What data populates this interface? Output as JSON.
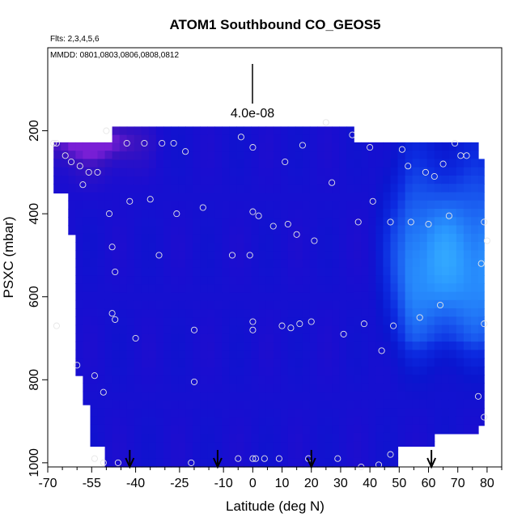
{
  "chart_data": {
    "type": "heatmap",
    "title": "ATOM1 Southbound CO_GEOS5",
    "flights_note": "Flts: 2,3,4,5,6",
    "dates_note": "MMDD: 0801,0803,0806,0808,0812",
    "xlabel": "Latitude (deg N)",
    "ylabel": "PSXC (mbar)",
    "xlim": [
      -70,
      85
    ],
    "ylim": [
      1010,
      0
    ],
    "x_ticks": [
      -70,
      -55,
      -40,
      -25,
      -10,
      0,
      10,
      20,
      30,
      40,
      50,
      60,
      70,
      80
    ],
    "x_tick_labels": [
      "-70",
      "-55",
      "-40",
      "-25",
      "-10",
      "0",
      "10",
      "20",
      "30",
      "40",
      "50",
      "60",
      "70",
      "80"
    ],
    "x_minor_ticks": [
      -65,
      -60,
      -50,
      -45,
      -35,
      -30,
      -20,
      -15,
      -5,
      5,
      15,
      25,
      35,
      45,
      55,
      65,
      75,
      85
    ],
    "y_ticks": [
      200,
      400,
      600,
      800,
      1000
    ],
    "y_tick_labels": [
      "200",
      "400",
      "600",
      "800",
      "1000"
    ],
    "scale_bar_label": "4.0e-08",
    "colormap": [
      "#7a1fd6",
      "#3a12c0",
      "#1a0ed0",
      "#0a16cf",
      "#0c2be0",
      "#1a5cf0",
      "#2a96ff",
      "#3ec0ff"
    ],
    "grid": false,
    "regions": {
      "top_left_purple": [
        [
          -68,
          230,
          0.05
        ],
        [
          -45,
          230,
          0.02
        ],
        [
          -38,
          230,
          0.0
        ]
      ],
      "nh_high": [
        [
          48,
          250,
          0.65
        ],
        [
          55,
          380,
          0.8
        ],
        [
          60,
          470,
          0.85
        ],
        [
          57,
          620,
          0.9
        ],
        [
          70,
          520,
          0.8
        ],
        [
          65,
          330,
          0.7
        ]
      ]
    },
    "observation_points": [
      [
        -68,
        230
      ],
      [
        -67,
        230
      ],
      [
        -67,
        670
      ],
      [
        -64,
        260
      ],
      [
        -62,
        275
      ],
      [
        -60,
        765
      ],
      [
        -59,
        285
      ],
      [
        -58,
        330
      ],
      [
        -56,
        300
      ],
      [
        -54,
        790
      ],
      [
        -54,
        990
      ],
      [
        -53,
        300
      ],
      [
        -51,
        830
      ],
      [
        -51,
        1000
      ],
      [
        -50,
        200
      ],
      [
        -49,
        400
      ],
      [
        -48,
        640
      ],
      [
        -48,
        480
      ],
      [
        -47,
        540
      ],
      [
        -47,
        655
      ],
      [
        -46,
        1000
      ],
      [
        -43,
        230
      ],
      [
        -42,
        370
      ],
      [
        -40,
        700
      ],
      [
        -37,
        230
      ],
      [
        -35,
        365
      ],
      [
        -32,
        500
      ],
      [
        -31,
        230
      ],
      [
        -27,
        230
      ],
      [
        -26,
        400
      ],
      [
        -23,
        250
      ],
      [
        -21,
        1000
      ],
      [
        -20,
        805
      ],
      [
        -20,
        680
      ],
      [
        -17,
        385
      ],
      [
        -7,
        500
      ],
      [
        -5,
        990
      ],
      [
        -4,
        215
      ],
      [
        -1,
        500
      ],
      [
        0,
        240
      ],
      [
        0,
        660
      ],
      [
        0,
        680
      ],
      [
        0,
        395
      ],
      [
        0,
        990
      ],
      [
        1,
        990
      ],
      [
        2,
        405
      ],
      [
        4,
        990
      ],
      [
        7,
        430
      ],
      [
        9,
        990
      ],
      [
        10,
        670
      ],
      [
        11,
        275
      ],
      [
        12,
        425
      ],
      [
        13,
        675
      ],
      [
        15,
        450
      ],
      [
        16,
        665
      ],
      [
        17,
        235
      ],
      [
        19,
        990
      ],
      [
        20,
        660
      ],
      [
        21,
        465
      ],
      [
        25,
        180
      ],
      [
        27,
        325
      ],
      [
        29,
        990
      ],
      [
        31,
        690
      ],
      [
        34,
        210
      ],
      [
        36,
        420
      ],
      [
        37,
        1010
      ],
      [
        38,
        665
      ],
      [
        40,
        240
      ],
      [
        41,
        370
      ],
      [
        43,
        1005
      ],
      [
        44,
        730
      ],
      [
        47,
        420
      ],
      [
        47,
        980
      ],
      [
        48,
        670
      ],
      [
        51,
        245
      ],
      [
        53,
        285
      ],
      [
        54,
        420
      ],
      [
        57,
        650
      ],
      [
        59,
        300
      ],
      [
        60,
        425
      ],
      [
        62,
        310
      ],
      [
        64,
        620
      ],
      [
        65,
        280
      ],
      [
        67,
        405
      ],
      [
        69,
        230
      ],
      [
        71,
        260
      ],
      [
        73,
        260
      ],
      [
        77,
        840
      ],
      [
        78,
        520
      ],
      [
        79,
        420
      ],
      [
        79,
        665
      ],
      [
        79,
        890
      ],
      [
        80,
        465
      ]
    ],
    "reference_arrows_x": [
      -42,
      -12,
      20,
      61
    ]
  }
}
